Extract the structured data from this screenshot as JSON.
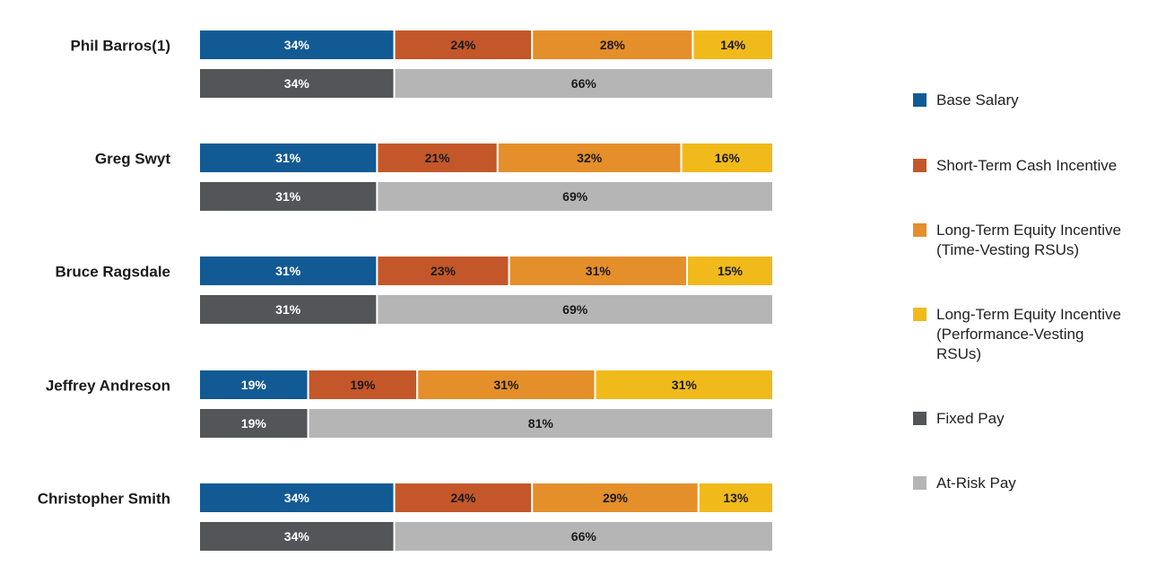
{
  "chart_data": {
    "type": "bar",
    "orientation": "horizontal",
    "stacked": "100%",
    "categories": [
      "Phil Barros(1)",
      "Greg Swyt",
      "Bruce Ragsdale",
      "Jeffrey Andreson",
      "Christopher Smith"
    ],
    "value_unit": "%",
    "groups": [
      {
        "bar": "components",
        "series": [
          {
            "name": "Base Salary",
            "color": "#125A94",
            "label_color": "#ffffff",
            "values": [
              34,
              31,
              31,
              19,
              34
            ]
          },
          {
            "name": "Short-Term Cash Incentive",
            "color": "#C4572A",
            "label_color": "#1a1a1a",
            "values": [
              24,
              21,
              23,
              19,
              24
            ]
          },
          {
            "name": "Long-Term Equity Incentive (Time-Vesting RSUs)",
            "color": "#E58F2A",
            "label_color": "#1a1a1a",
            "values": [
              28,
              32,
              31,
              31,
              29
            ]
          },
          {
            "name": "Long-Term Equity Incentive (Performance-Vesting RSUs)",
            "color": "#F1BA1B",
            "label_color": "#1a1a1a",
            "values": [
              14,
              16,
              15,
              31,
              13
            ]
          }
        ]
      },
      {
        "bar": "pay_type",
        "series": [
          {
            "name": "Fixed Pay",
            "color": "#545559",
            "label_color": "#ffffff",
            "values": [
              34,
              31,
              31,
              19,
              34
            ]
          },
          {
            "name": "At-Risk Pay",
            "color": "#B5B5B5",
            "label_color": "#1a1a1a",
            "values": [
              66,
              69,
              69,
              81,
              66
            ]
          }
        ]
      }
    ],
    "legend": {
      "position": "right",
      "items": [
        {
          "lines": [
            "Base Salary"
          ],
          "color": "#125A94"
        },
        {
          "lines": [
            "Short-Term Cash Incentive"
          ],
          "color": "#C4572A"
        },
        {
          "lines": [
            "Long-Term Equity Incentive",
            "(Time-Vesting RSUs)"
          ],
          "color": "#E58F2A"
        },
        {
          "lines": [
            "Long-Term Equity Incentive",
            "(Performance-Vesting",
            "RSUs)"
          ],
          "color": "#F1BA1B"
        },
        {
          "lines": [
            "Fixed Pay"
          ],
          "color": "#545559"
        },
        {
          "lines": [
            "At-Risk Pay"
          ],
          "color": "#B5B5B5"
        }
      ]
    }
  }
}
